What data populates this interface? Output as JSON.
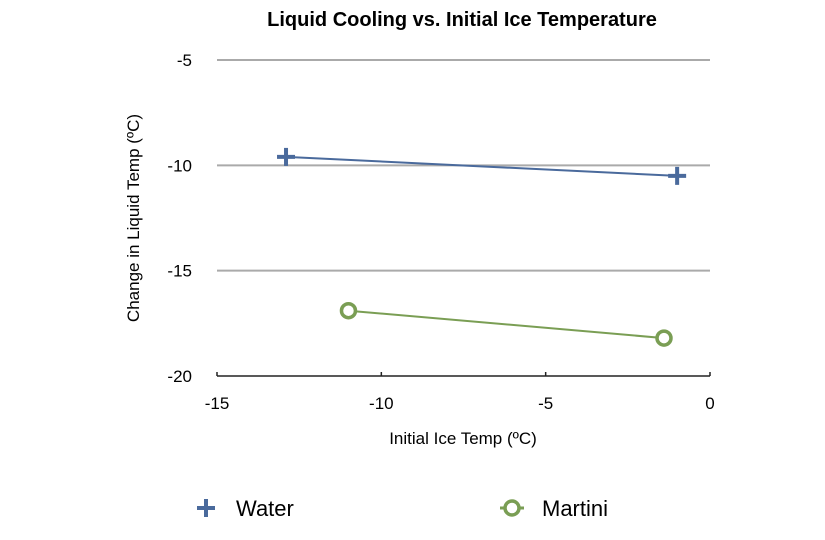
{
  "chart_data": {
    "type": "line",
    "title": "Liquid Cooling vs. Initial Ice Temperature",
    "xlabel": "Initial Ice Temp (ºC)",
    "ylabel": "Change in Liquid Temp (ºC)",
    "xlim": [
      -15,
      0
    ],
    "ylim": [
      -20,
      -5
    ],
    "xticks": [
      -15,
      -10,
      -5,
      0
    ],
    "yticks": [
      -5,
      -10,
      -15,
      -20
    ],
    "xtick_labels": [
      "-15",
      "-10",
      "-5",
      "0"
    ],
    "ytick_labels": [
      "-5",
      "-10",
      "-15",
      "-20"
    ],
    "grid": "horizontal",
    "legend_position": "bottom",
    "series": [
      {
        "name": "Water",
        "marker": "plus",
        "color": "#4a6a9c",
        "x": [
          -12.9,
          -1.0
        ],
        "y": [
          -9.6,
          -10.5
        ]
      },
      {
        "name": "Martini",
        "marker": "circle-open",
        "color": "#7a9e54",
        "x": [
          -11.0,
          -1.4
        ],
        "y": [
          -16.9,
          -18.2
        ]
      }
    ]
  }
}
